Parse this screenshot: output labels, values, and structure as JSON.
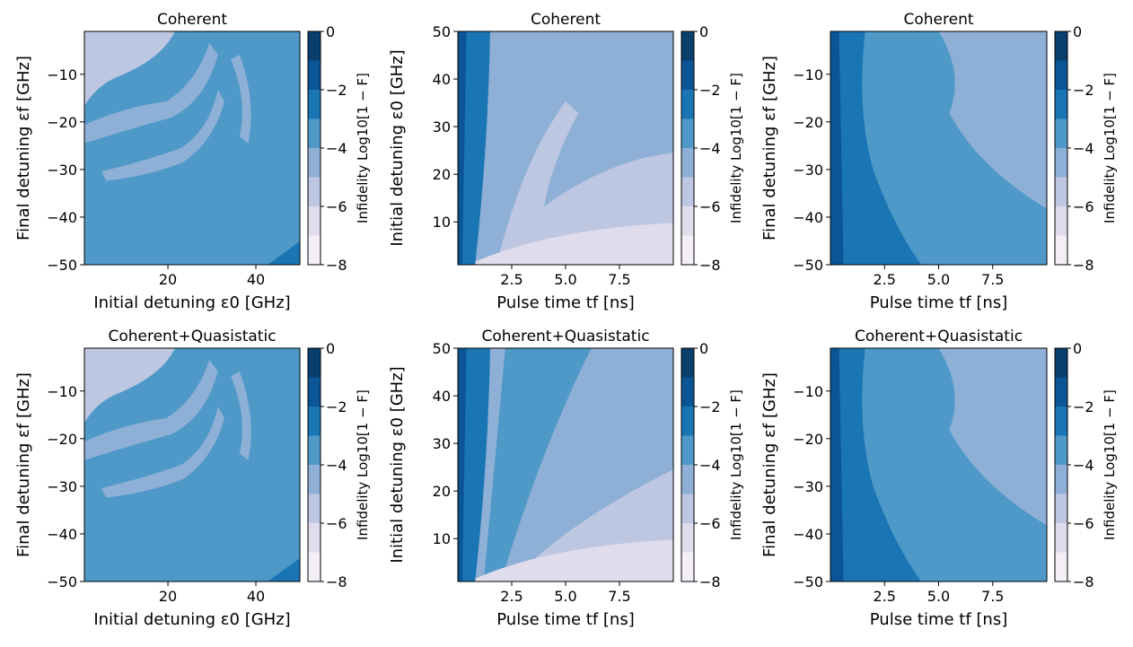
{
  "colors": {
    "levels": [
      "#f4eff7",
      "#e1dcec",
      "#bdc7e1",
      "#8fb0d6",
      "#4f99c9",
      "#1a75b4",
      "#0b5596",
      "#083f6c"
    ],
    "frame": "#000000",
    "background": "#ffffff"
  },
  "chart_data": [
    {
      "type": "heatmap",
      "title": "Coherent",
      "xlabel": "Initial detuning ε0 [GHz]",
      "ylabel": "Final detuning εf [GHz]",
      "xlim": [
        1,
        50
      ],
      "ylim": [
        -50,
        -1
      ],
      "xticks": [
        20,
        40
      ],
      "xtick_labels": [
        "20",
        "40"
      ],
      "yticks": [
        -10,
        -20,
        -30,
        -40,
        -50
      ],
      "ytick_labels": [
        "−10",
        "−20",
        "−30",
        "−40",
        "−50"
      ],
      "colorbar": {
        "label": "Infidelity Log10[1 − F]",
        "ticks": [
          0,
          -2,
          -4,
          -6,
          -8
        ],
        "tick_labels": [
          "0",
          "−2",
          "−4",
          "−6",
          "−8"
        ],
        "levels": [
          -8,
          -7,
          -6,
          -5,
          -4,
          -3,
          -2,
          -1,
          0
        ]
      },
      "z_description_level_bands": [
        {
          "region": "upper-left corner (small ε0, εf near −1)",
          "log10_infidelity": -5
        },
        {
          "region": "bulk of map",
          "log10_infidelity": -3.5
        },
        {
          "region": "arc stripes around ε0≈10–30, εf≈−5 to −30",
          "log10_infidelity": -4.5
        },
        {
          "region": "bottom-right corner",
          "log10_infidelity": -2.5
        }
      ]
    },
    {
      "type": "heatmap",
      "title": "Coherent",
      "xlabel": "Pulse time tf [ns]",
      "ylabel": "Initial detuning ε0 [GHz]",
      "xlim": [
        0,
        10
      ],
      "ylim": [
        1,
        50
      ],
      "xticks": [
        2.5,
        5.0,
        7.5
      ],
      "xtick_labels": [
        "2.5",
        "5.0",
        "7.5"
      ],
      "yticks": [
        10,
        20,
        30,
        40,
        50
      ],
      "ytick_labels": [
        "10",
        "20",
        "30",
        "40",
        "50"
      ],
      "colorbar": {
        "label": "Infidelity Log10[1 − F]",
        "ticks": [
          0,
          -2,
          -4,
          -6,
          -8
        ],
        "tick_labels": [
          "0",
          "−2",
          "−4",
          "−6",
          "−8"
        ],
        "levels": [
          -8,
          -7,
          -6,
          -5,
          -4,
          -3,
          -2,
          -1,
          0
        ]
      },
      "z_description_level_bands": [
        {
          "region": "left edge (tf < 0.3 ns)",
          "log10_infidelity": -1.5
        },
        {
          "region": "tf 0.3–1.7 ns",
          "log10_infidelity": -2.5
        },
        {
          "region": "wedge growing with tf",
          "log10_infidelity": -4.5
        },
        {
          "region": "high tf, low ε0",
          "log10_infidelity": -5.5
        },
        {
          "region": "bottom fringe",
          "log10_infidelity": -6.5
        }
      ]
    },
    {
      "type": "heatmap",
      "title": "Coherent",
      "xlabel": "Pulse time tf [ns]",
      "ylabel": "Final detuning εf [GHz]",
      "xlim": [
        0,
        10
      ],
      "ylim": [
        -50,
        -1
      ],
      "xticks": [
        2.5,
        5.0,
        7.5
      ],
      "xtick_labels": [
        "2.5",
        "5.0",
        "7.5"
      ],
      "yticks": [
        -10,
        -20,
        -30,
        -40,
        -50
      ],
      "ytick_labels": [
        "−10",
        "−20",
        "−30",
        "−40",
        "−50"
      ],
      "colorbar": {
        "label": "Infidelity Log10[1 − F]",
        "ticks": [
          0,
          -2,
          -4,
          -6,
          -8
        ],
        "tick_labels": [
          "0",
          "−2",
          "−4",
          "−6",
          "−8"
        ],
        "levels": [
          -8,
          -7,
          -6,
          -5,
          -4,
          -3,
          -2,
          -1,
          0
        ]
      },
      "z_description_level_bands": [
        {
          "region": "left edge",
          "log10_infidelity": -1.5
        },
        {
          "region": "tf 0.5–4 ns",
          "log10_infidelity": -2.5
        },
        {
          "region": "middle band",
          "log10_infidelity": -3.5
        },
        {
          "region": "upper right",
          "log10_infidelity": -4.5
        }
      ]
    },
    {
      "type": "heatmap",
      "title": "Coherent+Quasistatic",
      "xlabel": "Initial detuning ε0 [GHz]",
      "ylabel": "Final detuning εf [GHz]",
      "xlim": [
        1,
        50
      ],
      "ylim": [
        -50,
        -1
      ],
      "xticks": [
        20,
        40
      ],
      "xtick_labels": [
        "20",
        "40"
      ],
      "yticks": [
        -10,
        -20,
        -30,
        -40,
        -50
      ],
      "ytick_labels": [
        "−10",
        "−20",
        "−30",
        "−40",
        "−50"
      ],
      "colorbar": {
        "label": "Infidelity Log10[1 − F]",
        "ticks": [
          0,
          -2,
          -4,
          -6,
          -8
        ],
        "tick_labels": [
          "0",
          "−2",
          "−4",
          "−6",
          "−8"
        ],
        "levels": [
          -8,
          -7,
          -6,
          -5,
          -4,
          -3,
          -2,
          -1,
          0
        ]
      },
      "z_description_level_bands": [
        {
          "region": "upper-left corner",
          "log10_infidelity": -4.5
        },
        {
          "region": "bulk of map",
          "log10_infidelity": -3.5
        },
        {
          "region": "arc stripes",
          "log10_infidelity": -4.5
        },
        {
          "region": "bottom-right corner",
          "log10_infidelity": -2.5
        }
      ]
    },
    {
      "type": "heatmap",
      "title": "Coherent+Quasistatic",
      "xlabel": "Pulse time tf [ns]",
      "ylabel": "Initial detuning ε0 [GHz]",
      "xlim": [
        0,
        10
      ],
      "ylim": [
        1,
        50
      ],
      "xticks": [
        2.5,
        5.0,
        7.5
      ],
      "xtick_labels": [
        "2.5",
        "5.0",
        "7.5"
      ],
      "yticks": [
        10,
        20,
        30,
        40,
        50
      ],
      "ytick_labels": [
        "10",
        "20",
        "30",
        "40",
        "50"
      ],
      "colorbar": {
        "label": "Infidelity Log10[1 − F]",
        "ticks": [
          0,
          -2,
          -4,
          -6,
          -8
        ],
        "tick_labels": [
          "0",
          "−2",
          "−4",
          "−6",
          "−8"
        ],
        "levels": [
          -8,
          -7,
          -6,
          -5,
          -4,
          -3,
          -2,
          -1,
          0
        ]
      },
      "z_description_level_bands": [
        {
          "region": "left edge",
          "log10_infidelity": -1.5
        },
        {
          "region": "tf 0.3–1.7 ns",
          "log10_infidelity": -2.5
        },
        {
          "region": "band between",
          "log10_infidelity": -3.5
        },
        {
          "region": "upper right wedge",
          "log10_infidelity": -4.5
        },
        {
          "region": "lower right",
          "log10_infidelity": -5.5
        },
        {
          "region": "bottom fringe",
          "log10_infidelity": -6.5
        }
      ]
    },
    {
      "type": "heatmap",
      "title": "Coherent+Quasistatic",
      "xlabel": "Pulse time tf [ns]",
      "ylabel": "Final detuning εf [GHz]",
      "xlim": [
        0,
        10
      ],
      "ylim": [
        -50,
        -1
      ],
      "xticks": [
        2.5,
        5.0,
        7.5
      ],
      "xtick_labels": [
        "2.5",
        "5.0",
        "7.5"
      ],
      "yticks": [
        -10,
        -20,
        -30,
        -40,
        -50
      ],
      "ytick_labels": [
        "−10",
        "−20",
        "−30",
        "−40",
        "−50"
      ],
      "colorbar": {
        "label": "Infidelity Log10[1 − F]",
        "ticks": [
          0,
          -2,
          -4,
          -6,
          -8
        ],
        "tick_labels": [
          "0",
          "−2",
          "−4",
          "−6",
          "−8"
        ],
        "levels": [
          -8,
          -7,
          -6,
          -5,
          -4,
          -3,
          -2,
          -1,
          0
        ]
      },
      "z_description_level_bands": [
        {
          "region": "left edge",
          "log10_infidelity": -1.5
        },
        {
          "region": "tf 0.5–4 ns",
          "log10_infidelity": -2.5
        },
        {
          "region": "middle band",
          "log10_infidelity": -3.5
        },
        {
          "region": "upper right",
          "log10_infidelity": -4.5
        }
      ]
    }
  ]
}
